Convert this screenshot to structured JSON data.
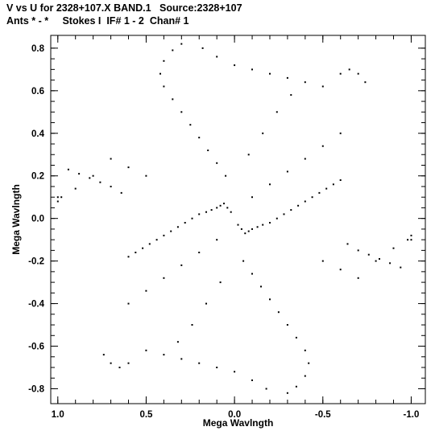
{
  "header": {
    "title": "V vs U for 2328+107.X BAND.1   Source:2328+107",
    "subtitle": "Ants * - *     Stokes I  IF# 1 - 2  Chan# 1"
  },
  "chart_data": {
    "type": "scatter",
    "title": "V vs U for 2328+107.X BAND.1   Source:2328+107",
    "subtitle": "Ants * - *     Stokes I  IF# 1 - 2  Chan# 1",
    "xlabel": "Mega Wavlngth",
    "ylabel": "Mega Wavlngth",
    "xlim": [
      1.04,
      -1.08
    ],
    "ylim": [
      -0.87,
      0.86
    ],
    "x_reversed": true,
    "x_ticks": [
      1.0,
      0.5,
      0.0,
      -0.5,
      -1.0
    ],
    "x_tick_labels": [
      "1.0",
      "0.5",
      "0.0",
      "-0.5",
      "-1.0"
    ],
    "y_ticks": [
      0.8,
      0.6,
      0.4,
      0.2,
      0.0,
      -0.2,
      -0.4,
      -0.6,
      -0.8
    ],
    "y_tick_labels": [
      "0.8",
      "0.6",
      "0.4",
      "0.2",
      "0.0",
      "-0.2",
      "-0.4",
      "-0.6",
      "-0.8"
    ],
    "grid": false,
    "legend": "none",
    "marker_color": "#000000",
    "series": [
      {
        "description": "uv-coverage tracks (conjugate symmetric)",
        "points": [
          [
            0.02,
            0.03
          ],
          [
            -0.02,
            -0.03
          ],
          [
            0.04,
            0.05
          ],
          [
            -0.04,
            -0.05
          ],
          [
            0.06,
            0.07
          ],
          [
            -0.06,
            -0.07
          ],
          [
            0.08,
            0.06
          ],
          [
            -0.08,
            -0.06
          ],
          [
            0.1,
            0.05
          ],
          [
            -0.1,
            -0.05
          ],
          [
            0.13,
            0.04
          ],
          [
            -0.13,
            -0.04
          ],
          [
            0.16,
            0.03
          ],
          [
            -0.16,
            -0.03
          ],
          [
            0.2,
            0.02
          ],
          [
            -0.2,
            -0.02
          ],
          [
            0.24,
            0.0
          ],
          [
            -0.24,
            0.0
          ],
          [
            0.28,
            -0.02
          ],
          [
            -0.28,
            0.02
          ],
          [
            0.32,
            -0.04
          ],
          [
            -0.32,
            0.04
          ],
          [
            0.36,
            -0.06
          ],
          [
            -0.36,
            0.06
          ],
          [
            0.4,
            -0.08
          ],
          [
            -0.4,
            0.08
          ],
          [
            0.44,
            -0.1
          ],
          [
            -0.44,
            0.1
          ],
          [
            0.48,
            -0.12
          ],
          [
            -0.48,
            0.12
          ],
          [
            0.52,
            -0.14
          ],
          [
            -0.52,
            0.14
          ],
          [
            0.56,
            -0.16
          ],
          [
            -0.56,
            0.16
          ],
          [
            0.6,
            -0.18
          ],
          [
            -0.6,
            0.18
          ],
          [
            0.64,
            0.12
          ],
          [
            -0.64,
            -0.12
          ],
          [
            0.7,
            0.15
          ],
          [
            -0.7,
            -0.15
          ],
          [
            0.76,
            0.17
          ],
          [
            -0.76,
            -0.17
          ],
          [
            0.82,
            0.19
          ],
          [
            -0.82,
            -0.19
          ],
          [
            0.88,
            0.21
          ],
          [
            -0.88,
            -0.21
          ],
          [
            0.94,
            0.23
          ],
          [
            -0.94,
            -0.23
          ],
          [
            0.98,
            0.1
          ],
          [
            -0.98,
            -0.1
          ],
          [
            1.0,
            0.08
          ],
          [
            -1.0,
            -0.08
          ],
          [
            0.05,
            0.2
          ],
          [
            -0.05,
            -0.2
          ],
          [
            0.1,
            0.26
          ],
          [
            -0.1,
            -0.26
          ],
          [
            0.15,
            0.32
          ],
          [
            -0.15,
            -0.32
          ],
          [
            0.2,
            0.38
          ],
          [
            -0.2,
            -0.38
          ],
          [
            0.25,
            0.44
          ],
          [
            -0.25,
            -0.44
          ],
          [
            0.3,
            0.5
          ],
          [
            -0.3,
            -0.5
          ],
          [
            0.35,
            0.56
          ],
          [
            -0.35,
            -0.56
          ],
          [
            0.4,
            0.62
          ],
          [
            -0.4,
            -0.62
          ],
          [
            0.42,
            0.68
          ],
          [
            -0.42,
            -0.68
          ],
          [
            0.4,
            0.74
          ],
          [
            -0.4,
            -0.74
          ],
          [
            0.35,
            0.79
          ],
          [
            -0.35,
            -0.79
          ],
          [
            0.3,
            0.82
          ],
          [
            -0.3,
            -0.82
          ],
          [
            0.18,
            0.8
          ],
          [
            -0.18,
            -0.8
          ],
          [
            0.1,
            0.76
          ],
          [
            -0.1,
            -0.76
          ],
          [
            0.0,
            0.72
          ],
          [
            0.0,
            -0.72
          ],
          [
            -0.1,
            0.7
          ],
          [
            0.1,
            -0.7
          ],
          [
            -0.2,
            0.68
          ],
          [
            0.2,
            -0.68
          ],
          [
            -0.3,
            0.66
          ],
          [
            0.3,
            -0.66
          ],
          [
            -0.4,
            0.64
          ],
          [
            0.4,
            -0.64
          ],
          [
            -0.5,
            0.62
          ],
          [
            0.5,
            -0.62
          ],
          [
            -0.6,
            0.68
          ],
          [
            0.6,
            -0.68
          ],
          [
            -0.65,
            0.7
          ],
          [
            0.65,
            -0.7
          ],
          [
            -0.7,
            0.68
          ],
          [
            0.7,
            -0.68
          ],
          [
            -0.74,
            0.64
          ],
          [
            0.74,
            -0.64
          ],
          [
            -0.1,
            0.1
          ],
          [
            0.1,
            -0.1
          ],
          [
            -0.2,
            0.16
          ],
          [
            0.2,
            -0.16
          ],
          [
            -0.3,
            0.22
          ],
          [
            0.3,
            -0.22
          ],
          [
            -0.4,
            0.28
          ],
          [
            0.4,
            -0.28
          ],
          [
            -0.5,
            0.34
          ],
          [
            0.5,
            -0.34
          ],
          [
            -0.6,
            0.4
          ],
          [
            0.6,
            -0.4
          ],
          [
            -0.08,
            0.3
          ],
          [
            0.08,
            -0.3
          ],
          [
            -0.16,
            0.4
          ],
          [
            0.16,
            -0.4
          ],
          [
            -0.24,
            0.5
          ],
          [
            0.24,
            -0.5
          ],
          [
            -0.32,
            0.58
          ],
          [
            0.32,
            -0.58
          ],
          [
            -0.5,
            -0.2
          ],
          [
            0.5,
            0.2
          ],
          [
            -0.6,
            -0.24
          ],
          [
            0.6,
            0.24
          ],
          [
            -0.7,
            -0.28
          ],
          [
            0.7,
            0.28
          ],
          [
            -0.8,
            -0.2
          ],
          [
            0.8,
            0.2
          ],
          [
            -0.9,
            -0.14
          ],
          [
            0.9,
            0.14
          ],
          [
            -1.0,
            -0.1
          ],
          [
            1.0,
            0.1
          ]
        ]
      }
    ]
  }
}
